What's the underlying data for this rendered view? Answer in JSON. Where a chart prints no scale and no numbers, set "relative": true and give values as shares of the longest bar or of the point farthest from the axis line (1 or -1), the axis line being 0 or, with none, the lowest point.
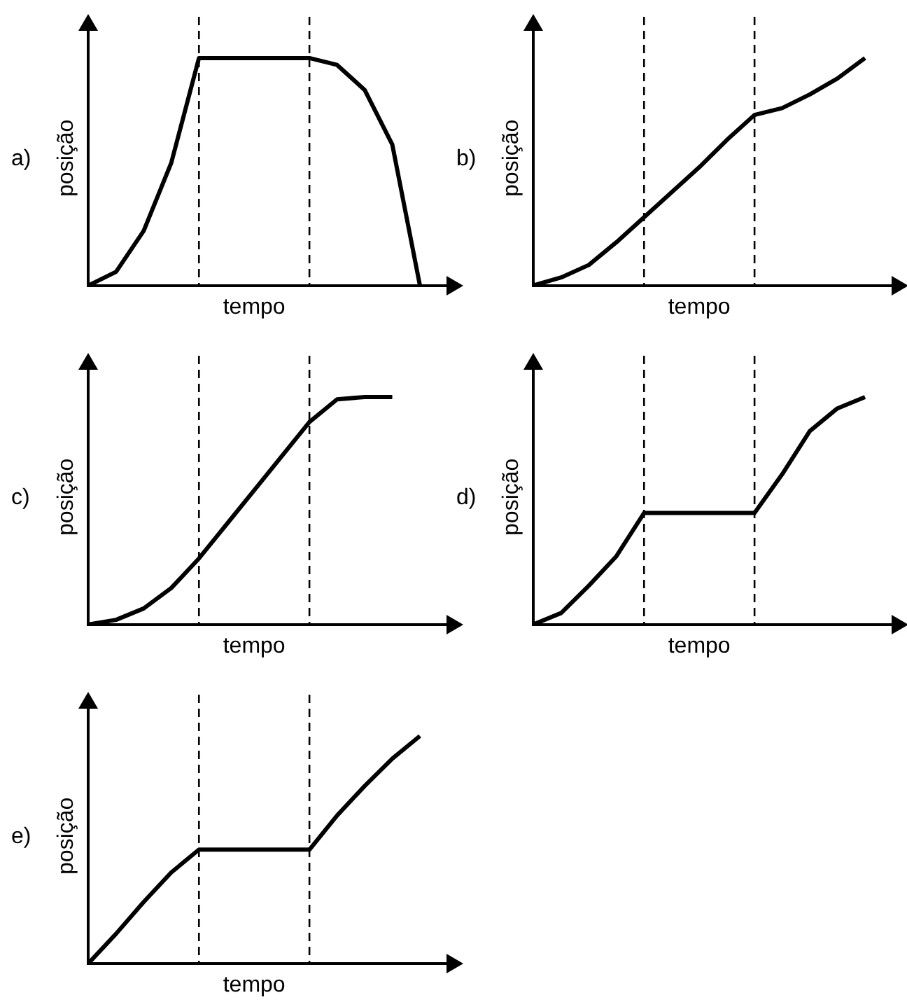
{
  "chart_data": [
    {
      "type": "line",
      "title": "a)",
      "xlabel": "tempo",
      "ylabel": "posição",
      "relative": true,
      "tick_labels": false,
      "marker": "none",
      "line_style": "solid",
      "categories": [
        null,
        null,
        null,
        null,
        null,
        null,
        null,
        null,
        null,
        null,
        null,
        null,
        null
      ],
      "series": [
        {
          "color": "#000000",
          "values": [
            0,
            0.06,
            0.24,
            0.54,
            1,
            1,
            1,
            1,
            1,
            0.97,
            0.86,
            0.62,
            0
          ]
        }
      ]
    },
    {
      "type": "line",
      "title": "b)",
      "xlabel": "tempo",
      "ylabel": "posição",
      "relative": true,
      "tick_labels": false,
      "marker": "none",
      "line_style": "solid",
      "categories": [
        null,
        null,
        null,
        null,
        null,
        null,
        null,
        null,
        null,
        null,
        null,
        null,
        null
      ],
      "series": [
        {
          "color": "#000000",
          "values": [
            0,
            0.035,
            0.09,
            0.19,
            0.3,
            0.41,
            0.52,
            0.64,
            0.75,
            0.78,
            0.84,
            0.91,
            1
          ]
        }
      ]
    },
    {
      "type": "line",
      "title": "c)",
      "xlabel": "tempo",
      "ylabel": "posição",
      "relative": true,
      "tick_labels": false,
      "marker": "none",
      "line_style": "solid",
      "categories": [
        null,
        null,
        null,
        null,
        null,
        null,
        null,
        null,
        null,
        null,
        null,
        null,
        null
      ],
      "series": [
        {
          "color": "#000000",
          "values": [
            0,
            0.02,
            0.07,
            0.16,
            0.29,
            0.44,
            0.59,
            0.74,
            0.89,
            0.99,
            1,
            1,
            null
          ]
        }
      ]
    },
    {
      "type": "line",
      "title": "d)",
      "xlabel": "tempo",
      "ylabel": "posição",
      "relative": true,
      "tick_labels": false,
      "marker": "none",
      "line_style": "solid",
      "categories": [
        null,
        null,
        null,
        null,
        null,
        null,
        null,
        null,
        null,
        null,
        null,
        null,
        null
      ],
      "series": [
        {
          "color": "#000000",
          "values": [
            0,
            0.05,
            0.17,
            0.3,
            0.49,
            0.49,
            0.49,
            0.49,
            0.49,
            0.66,
            0.85,
            0.95,
            1
          ]
        }
      ]
    },
    {
      "type": "line",
      "title": "e)",
      "xlabel": "tempo",
      "ylabel": "posição",
      "relative": true,
      "tick_labels": false,
      "marker": "none",
      "line_style": "solid",
      "categories": [
        null,
        null,
        null,
        null,
        null,
        null,
        null,
        null,
        null,
        null,
        null,
        null,
        null
      ],
      "series": [
        {
          "color": "#000000",
          "values": [
            0,
            0.13,
            0.27,
            0.4,
            0.5,
            0.5,
            0.5,
            0.5,
            0.5,
            0.65,
            0.78,
            0.9,
            1
          ]
        }
      ]
    }
  ]
}
